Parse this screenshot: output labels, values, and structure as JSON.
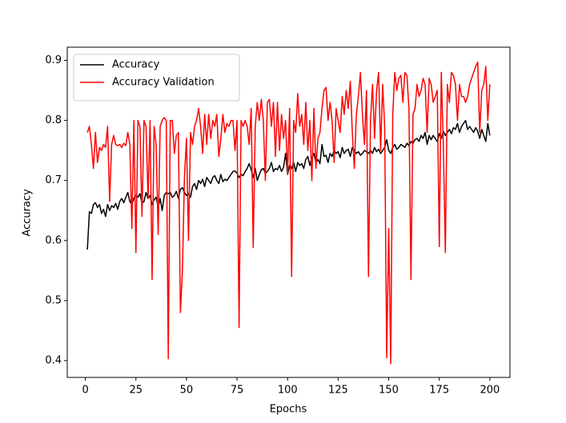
{
  "chart_data": {
    "type": "line",
    "xlabel": "Epochs",
    "ylabel": "Accuracy",
    "x": [
      1,
      2,
      3,
      4,
      5,
      6,
      7,
      8,
      9,
      10,
      11,
      12,
      13,
      14,
      15,
      16,
      17,
      18,
      19,
      20,
      21,
      22,
      23,
      24,
      25,
      26,
      27,
      28,
      29,
      30,
      31,
      32,
      33,
      34,
      35,
      36,
      37,
      38,
      39,
      40,
      41,
      42,
      43,
      44,
      45,
      46,
      47,
      48,
      49,
      50,
      51,
      52,
      53,
      54,
      55,
      56,
      57,
      58,
      59,
      60,
      61,
      62,
      63,
      64,
      65,
      66,
      67,
      68,
      69,
      70,
      71,
      72,
      73,
      74,
      75,
      76,
      77,
      78,
      79,
      80,
      81,
      82,
      83,
      84,
      85,
      86,
      87,
      88,
      89,
      90,
      91,
      92,
      93,
      94,
      95,
      96,
      97,
      98,
      99,
      100,
      101,
      102,
      103,
      104,
      105,
      106,
      107,
      108,
      109,
      110,
      111,
      112,
      113,
      114,
      115,
      116,
      117,
      118,
      119,
      120,
      121,
      122,
      123,
      124,
      125,
      126,
      127,
      128,
      129,
      130,
      131,
      132,
      133,
      134,
      135,
      136,
      137,
      138,
      139,
      140,
      141,
      142,
      143,
      144,
      145,
      146,
      147,
      148,
      149,
      150,
      151,
      152,
      153,
      154,
      155,
      156,
      157,
      158,
      159,
      160,
      161,
      162,
      163,
      164,
      165,
      166,
      167,
      168,
      169,
      170,
      171,
      172,
      173,
      174,
      175,
      176,
      177,
      178,
      179,
      180,
      181,
      182,
      183,
      184,
      185,
      186,
      187,
      188,
      189,
      190,
      191,
      192,
      193,
      194,
      195,
      196,
      197,
      198,
      199,
      200
    ],
    "series": [
      {
        "name": "Accuracy",
        "color": "#000000",
        "values": [
          0.585,
          0.648,
          0.645,
          0.66,
          0.663,
          0.655,
          0.66,
          0.645,
          0.652,
          0.64,
          0.66,
          0.65,
          0.658,
          0.655,
          0.662,
          0.652,
          0.665,
          0.67,
          0.663,
          0.672,
          0.68,
          0.665,
          0.66,
          0.67,
          0.675,
          0.672,
          0.678,
          0.662,
          0.665,
          0.68,
          0.67,
          0.675,
          0.66,
          0.668,
          0.672,
          0.655,
          0.67,
          0.65,
          0.675,
          0.68,
          0.678,
          0.68,
          0.672,
          0.675,
          0.682,
          0.67,
          0.685,
          0.688,
          0.68,
          0.675,
          0.678,
          0.672,
          0.69,
          0.695,
          0.685,
          0.7,
          0.695,
          0.702,
          0.69,
          0.705,
          0.7,
          0.695,
          0.705,
          0.708,
          0.7,
          0.695,
          0.71,
          0.698,
          0.702,
          0.7,
          0.705,
          0.71,
          0.715,
          0.716,
          0.712,
          0.705,
          0.71,
          0.708,
          0.715,
          0.72,
          0.728,
          0.718,
          0.705,
          0.72,
          0.7,
          0.71,
          0.718,
          0.72,
          0.712,
          0.715,
          0.72,
          0.73,
          0.715,
          0.72,
          0.718,
          0.725,
          0.715,
          0.722,
          0.745,
          0.71,
          0.725,
          0.72,
          0.73,
          0.715,
          0.73,
          0.725,
          0.728,
          0.72,
          0.735,
          0.74,
          0.725,
          0.738,
          0.745,
          0.73,
          0.735,
          0.728,
          0.76,
          0.74,
          0.742,
          0.73,
          0.745,
          0.74,
          0.75,
          0.745,
          0.748,
          0.738,
          0.755,
          0.745,
          0.75,
          0.752,
          0.74,
          0.755,
          0.75,
          0.745,
          0.748,
          0.742,
          0.745,
          0.75,
          0.748,
          0.745,
          0.75,
          0.745,
          0.755,
          0.748,
          0.752,
          0.745,
          0.75,
          0.755,
          0.768,
          0.75,
          0.745,
          0.755,
          0.76,
          0.752,
          0.755,
          0.76,
          0.758,
          0.755,
          0.762,
          0.758,
          0.765,
          0.762,
          0.768,
          0.77,
          0.765,
          0.775,
          0.77,
          0.78,
          0.76,
          0.775,
          0.768,
          0.775,
          0.77,
          0.765,
          0.778,
          0.77,
          0.782,
          0.775,
          0.78,
          0.785,
          0.778,
          0.788,
          0.785,
          0.795,
          0.78,
          0.79,
          0.795,
          0.8,
          0.785,
          0.79,
          0.785,
          0.78,
          0.788,
          0.782,
          0.77,
          0.785,
          0.775,
          0.765,
          0.795,
          0.775
        ]
      },
      {
        "name": "Accuracy Validation",
        "color": "#ff0000",
        "values": [
          0.78,
          0.79,
          0.76,
          0.72,
          0.78,
          0.73,
          0.755,
          0.75,
          0.76,
          0.755,
          0.79,
          0.665,
          0.76,
          0.775,
          0.76,
          0.758,
          0.76,
          0.755,
          0.762,
          0.758,
          0.78,
          0.76,
          0.62,
          0.8,
          0.58,
          0.8,
          0.79,
          0.64,
          0.8,
          0.79,
          0.67,
          0.8,
          0.535,
          0.79,
          0.76,
          0.61,
          0.79,
          0.8,
          0.805,
          0.8,
          0.403,
          0.8,
          0.8,
          0.745,
          0.775,
          0.78,
          0.48,
          0.55,
          0.705,
          0.77,
          0.6,
          0.78,
          0.76,
          0.79,
          0.8,
          0.82,
          0.79,
          0.745,
          0.81,
          0.76,
          0.81,
          0.77,
          0.8,
          0.79,
          0.81,
          0.74,
          0.77,
          0.81,
          0.78,
          0.795,
          0.79,
          0.8,
          0.8,
          0.75,
          0.8,
          0.455,
          0.8,
          0.79,
          0.8,
          0.79,
          0.76,
          0.82,
          0.588,
          0.79,
          0.83,
          0.8,
          0.835,
          0.8,
          0.7,
          0.83,
          0.835,
          0.79,
          0.83,
          0.74,
          0.83,
          0.75,
          0.81,
          0.77,
          0.8,
          0.71,
          0.82,
          0.54,
          0.8,
          0.78,
          0.845,
          0.79,
          0.81,
          0.76,
          0.83,
          0.75,
          0.8,
          0.7,
          0.82,
          0.72,
          0.77,
          0.78,
          0.82,
          0.85,
          0.855,
          0.8,
          0.83,
          0.8,
          0.73,
          0.82,
          0.8,
          0.78,
          0.84,
          0.81,
          0.85,
          0.82,
          0.865,
          0.78,
          0.72,
          0.81,
          0.84,
          0.88,
          0.81,
          0.76,
          0.85,
          0.54,
          0.8,
          0.86,
          0.77,
          0.85,
          0.88,
          0.75,
          0.86,
          0.79,
          0.405,
          0.62,
          0.395,
          0.81,
          0.88,
          0.85,
          0.87,
          0.875,
          0.83,
          0.88,
          0.875,
          0.82,
          0.535,
          0.81,
          0.82,
          0.86,
          0.84,
          0.85,
          0.87,
          0.86,
          0.78,
          0.87,
          0.86,
          0.83,
          0.84,
          0.85,
          0.59,
          0.88,
          0.76,
          0.58,
          0.86,
          0.83,
          0.88,
          0.875,
          0.86,
          0.8,
          0.86,
          0.84,
          0.84,
          0.83,
          0.84,
          0.86,
          0.87,
          0.88,
          0.89,
          0.897,
          0.78,
          0.85,
          0.86,
          0.89,
          0.8,
          0.86
        ]
      }
    ],
    "xlim": [
      -8.95,
      209.95
    ],
    "ylim": [
      0.372,
      0.922
    ],
    "xticks": [
      0,
      25,
      50,
      75,
      100,
      125,
      150,
      175,
      200
    ],
    "yticks": [
      0.4,
      0.5,
      0.6,
      0.7,
      0.8,
      0.9
    ],
    "legend": "upper left",
    "grid": false
  }
}
